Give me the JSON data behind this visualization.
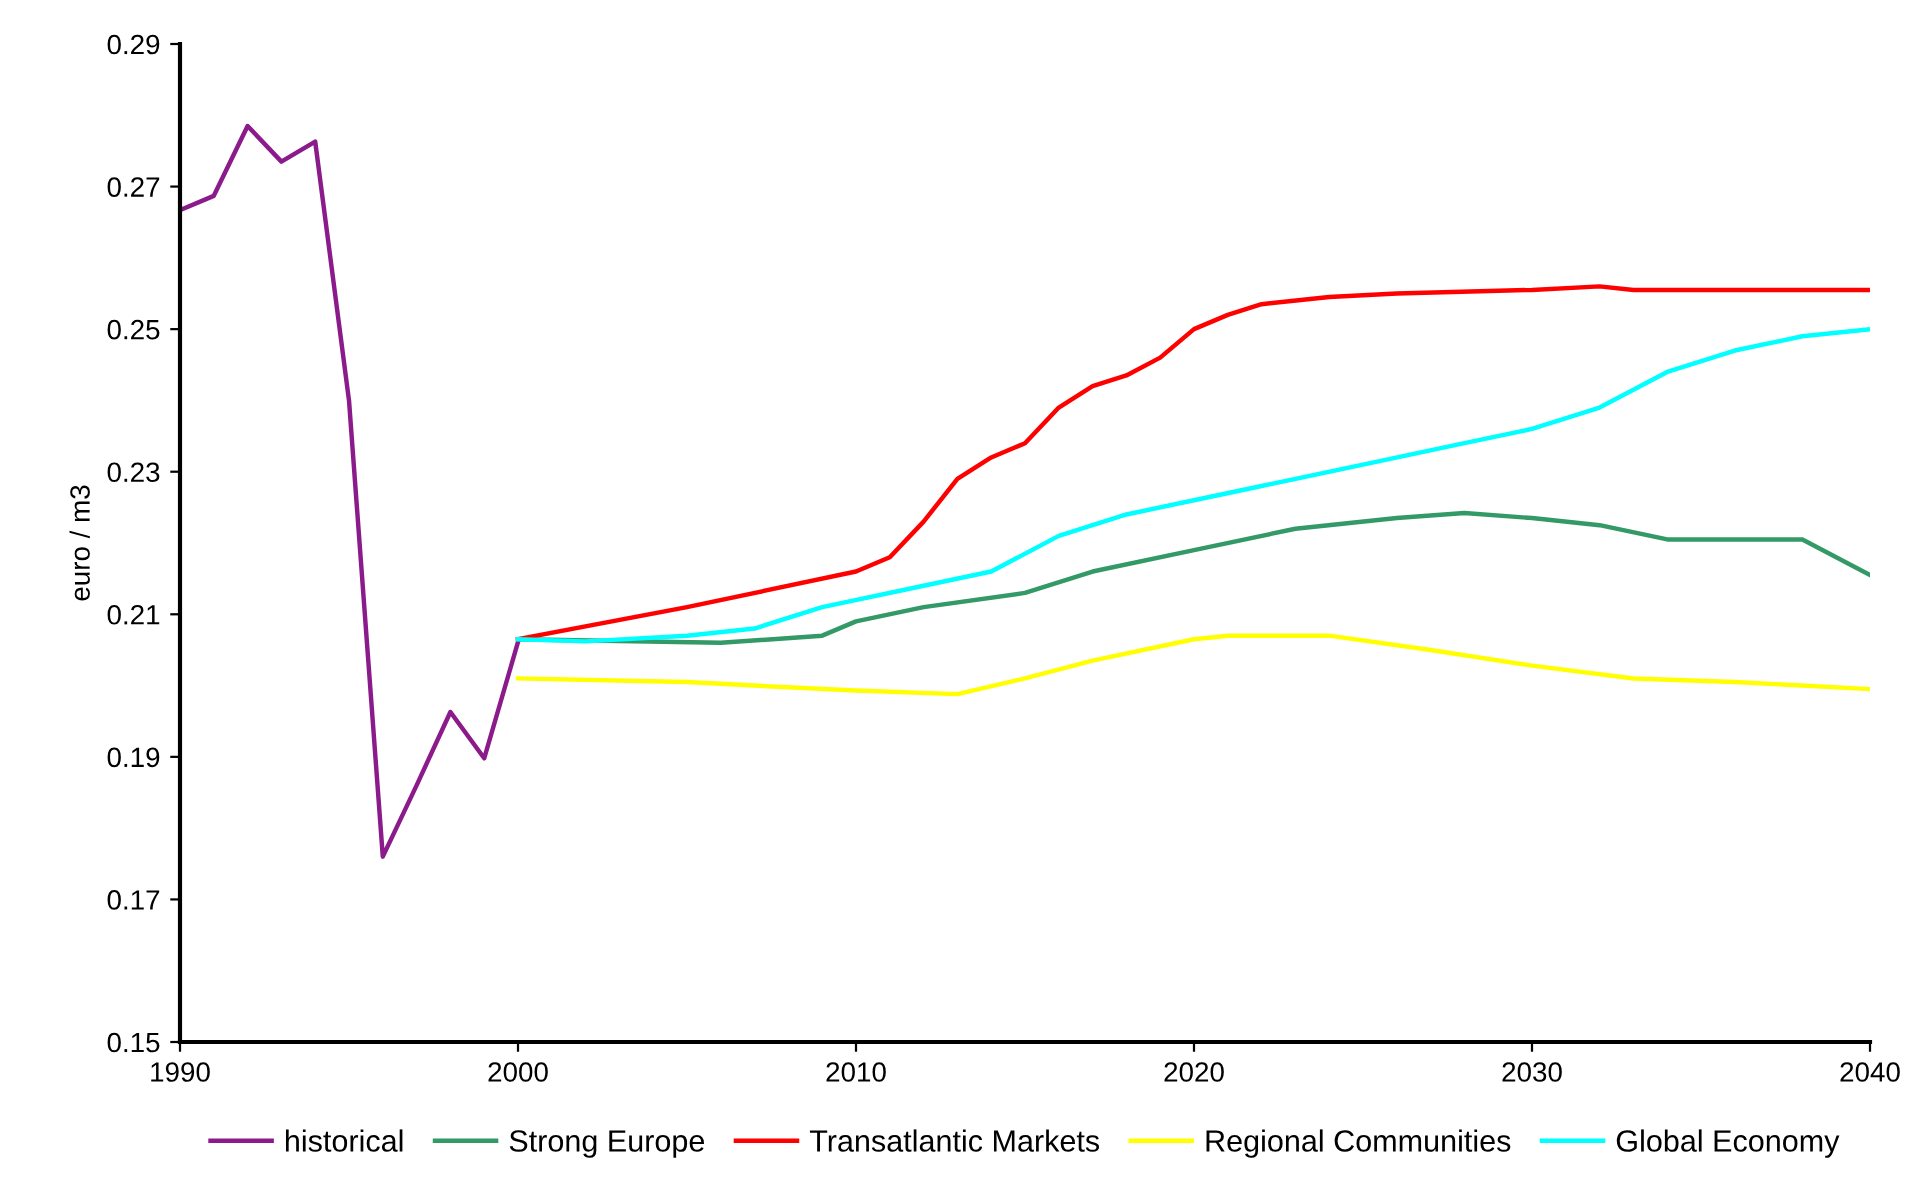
{
  "chart_data": {
    "type": "line",
    "ylabel": "euro / m3",
    "xlim": [
      1990,
      2040
    ],
    "xticks": [
      1990,
      2000,
      2010,
      2020,
      2030,
      2040
    ],
    "ylim": [
      0.15,
      0.29
    ],
    "yticks": [
      0.15,
      0.17,
      0.19,
      0.21,
      0.23,
      0.25,
      0.27,
      0.29
    ],
    "grid": false,
    "legend": "bottom",
    "marker": "none",
    "line_style": "solid",
    "series": [
      {
        "name": "historical",
        "color": "#8b1a8b",
        "x": [
          1990,
          1991,
          1992,
          1993,
          1994,
          1995,
          1996,
          1997,
          1998,
          1999,
          2000
        ],
        "values": [
          0.2667,
          0.2687,
          0.2785,
          0.2735,
          0.2763,
          0.24,
          0.176,
          0.186,
          0.1963,
          0.1898,
          0.2061
        ]
      },
      {
        "name": "Strong Europe",
        "color": "#339966",
        "x": [
          2000,
          2006,
          2009,
          2010,
          2012,
          2015,
          2017,
          2020,
          2023,
          2026,
          2028,
          2030,
          2032,
          2034,
          2038,
          2040
        ],
        "values": [
          0.2065,
          0.206,
          0.207,
          0.209,
          0.211,
          0.213,
          0.216,
          0.219,
          0.222,
          0.2235,
          0.2242,
          0.2235,
          0.2225,
          0.2205,
          0.2205,
          0.2155
        ]
      },
      {
        "name": "Transatlantic Markets",
        "color": "#ff0000",
        "x": [
          2000,
          2005,
          2010,
          2011,
          2012,
          2013,
          2014,
          2015,
          2016,
          2017,
          2018,
          2019,
          2020,
          2021,
          2022,
          2024,
          2026,
          2030,
          2032,
          2033,
          2040
        ],
        "values": [
          0.2065,
          0.211,
          0.216,
          0.218,
          0.223,
          0.229,
          0.232,
          0.234,
          0.239,
          0.242,
          0.2435,
          0.246,
          0.25,
          0.252,
          0.2535,
          0.2545,
          0.255,
          0.2555,
          0.256,
          0.2555,
          0.2555
        ]
      },
      {
        "name": "Regional Communities",
        "color": "#ffff00",
        "x": [
          2000,
          2005,
          2007,
          2010,
          2013,
          2015,
          2017,
          2020,
          2021,
          2024,
          2027,
          2030,
          2033,
          2036,
          2040
        ],
        "values": [
          0.201,
          0.2005,
          0.2,
          0.1993,
          0.1988,
          0.201,
          0.2035,
          0.2065,
          0.207,
          0.207,
          0.205,
          0.2028,
          0.201,
          0.2005,
          0.1995
        ]
      },
      {
        "name": "Global Economy",
        "color": "#00ffff",
        "x": [
          2000,
          2002,
          2005,
          2007,
          2009,
          2012,
          2014,
          2016,
          2018,
          2020,
          2022,
          2025,
          2028,
          2030,
          2032,
          2034,
          2036,
          2038,
          2040
        ],
        "values": [
          0.2065,
          0.2062,
          0.207,
          0.208,
          0.211,
          0.214,
          0.216,
          0.221,
          0.224,
          0.226,
          0.228,
          0.231,
          0.234,
          0.236,
          0.239,
          0.244,
          0.247,
          0.249,
          0.25
        ]
      }
    ]
  }
}
